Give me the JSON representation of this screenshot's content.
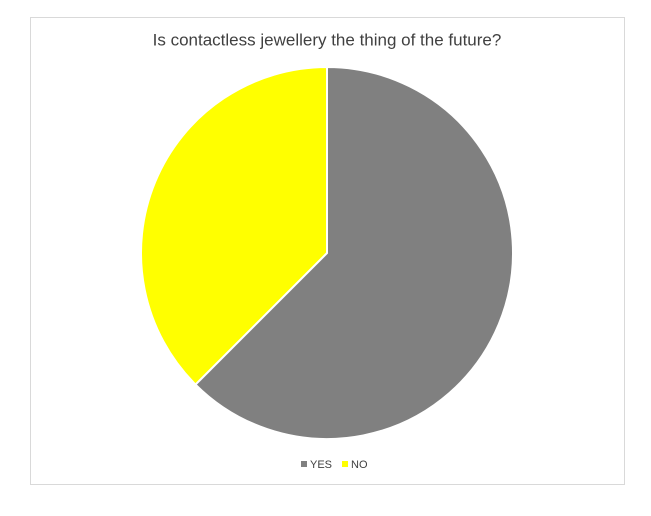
{
  "chart_data": {
    "type": "pie",
    "title": "Is contactless jewellery the thing of the future?",
    "categories": [
      "YES",
      "NO"
    ],
    "values": [
      62.5,
      37.5
    ],
    "colors": [
      "#808080",
      "#ffff00"
    ]
  }
}
